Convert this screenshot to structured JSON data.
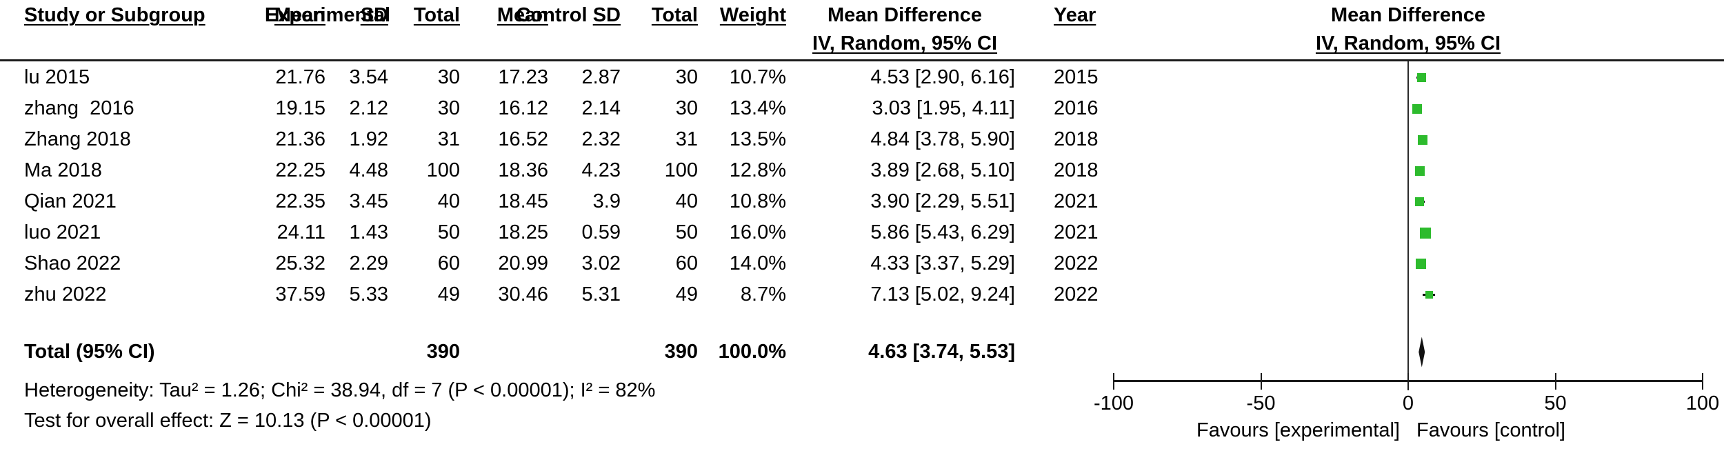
{
  "table": {
    "group_headers": {
      "experimental": "Experimental",
      "control": "Control",
      "mean_difference": "Mean Difference"
    },
    "column_headers": {
      "study": "Study or Subgroup",
      "mean": "Mean",
      "sd": "SD",
      "total": "Total",
      "weight": "Weight",
      "iv_random": "IV, Random, 95% CI",
      "year": "Year"
    }
  },
  "plot": {
    "header_line1": "Mean Difference",
    "header_line2": "IV, Random, 95% CI",
    "favours_left": "Favours [experimental]",
    "favours_right": "Favours [control]"
  },
  "footer": {
    "heterogeneity": "Heterogeneity: Tau² = 1.26; Chi² = 38.94, df = 7 (P < 0.00001); I² = 82%",
    "overall_effect": "Test for overall effect: Z = 10.13 (P < 0.00001)"
  },
  "chart_data": {
    "type": "forest",
    "effect_measure": "Mean Difference, IV, Random, 95% CI",
    "marker_color": "#2dbb2d",
    "axis": {
      "min": -100,
      "max": 100,
      "ticks": [
        -100,
        -50,
        0,
        50,
        100
      ]
    },
    "rows": [
      {
        "study": "lu 2015",
        "mean_e": "21.76",
        "sd_e": "3.54",
        "total_e": "30",
        "mean_c": "17.23",
        "sd_c": "2.87",
        "total_c": "30",
        "weight": "10.7%",
        "weight_pct": 10.7,
        "md": 4.53,
        "ci_low": 2.9,
        "ci_high": 6.16,
        "ci_label": "4.53 [2.90, 6.16]",
        "year": "2015"
      },
      {
        "study": "zhang  2016",
        "mean_e": "19.15",
        "sd_e": "2.12",
        "total_e": "30",
        "mean_c": "16.12",
        "sd_c": "2.14",
        "total_c": "30",
        "weight": "13.4%",
        "weight_pct": 13.4,
        "md": 3.03,
        "ci_low": 1.95,
        "ci_high": 4.11,
        "ci_label": "3.03 [1.95, 4.11]",
        "year": "2016"
      },
      {
        "study": "Zhang 2018",
        "mean_e": "21.36",
        "sd_e": "1.92",
        "total_e": "31",
        "mean_c": "16.52",
        "sd_c": "2.32",
        "total_c": "31",
        "weight": "13.5%",
        "weight_pct": 13.5,
        "md": 4.84,
        "ci_low": 3.78,
        "ci_high": 5.9,
        "ci_label": "4.84 [3.78, 5.90]",
        "year": "2018"
      },
      {
        "study": "Ma 2018",
        "mean_e": "22.25",
        "sd_e": "4.48",
        "total_e": "100",
        "mean_c": "18.36",
        "sd_c": "4.23",
        "total_c": "100",
        "weight": "12.8%",
        "weight_pct": 12.8,
        "md": 3.89,
        "ci_low": 2.68,
        "ci_high": 5.1,
        "ci_label": "3.89 [2.68, 5.10]",
        "year": "2018"
      },
      {
        "study": "Qian 2021",
        "mean_e": "22.35",
        "sd_e": "3.45",
        "total_e": "40",
        "mean_c": "18.45",
        "sd_c": "3.9",
        "total_c": "40",
        "weight": "10.8%",
        "weight_pct": 10.8,
        "md": 3.9,
        "ci_low": 2.29,
        "ci_high": 5.51,
        "ci_label": "3.90 [2.29, 5.51]",
        "year": "2021"
      },
      {
        "study": "luo 2021",
        "mean_e": "24.11",
        "sd_e": "1.43",
        "total_e": "50",
        "mean_c": "18.25",
        "sd_c": "0.59",
        "total_c": "50",
        "weight": "16.0%",
        "weight_pct": 16.0,
        "md": 5.86,
        "ci_low": 5.43,
        "ci_high": 6.29,
        "ci_label": "5.86 [5.43, 6.29]",
        "year": "2021"
      },
      {
        "study": "Shao 2022",
        "mean_e": "25.32",
        "sd_e": "2.29",
        "total_e": "60",
        "mean_c": "20.99",
        "sd_c": "3.02",
        "total_c": "60",
        "weight": "14.0%",
        "weight_pct": 14.0,
        "md": 4.33,
        "ci_low": 3.37,
        "ci_high": 5.29,
        "ci_label": "4.33 [3.37, 5.29]",
        "year": "2022"
      },
      {
        "study": "zhu 2022",
        "mean_e": "37.59",
        "sd_e": "5.33",
        "total_e": "49",
        "mean_c": "30.46",
        "sd_c": "5.31",
        "total_c": "49",
        "weight": "8.7%",
        "weight_pct": 8.7,
        "md": 7.13,
        "ci_low": 5.02,
        "ci_high": 9.24,
        "ci_label": "7.13 [5.02, 9.24]",
        "year": "2022"
      }
    ],
    "total": {
      "label": "Total (95% CI)",
      "total_e": "390",
      "total_c": "390",
      "weight": "100.0%",
      "md": 4.63,
      "ci_low": 3.74,
      "ci_high": 5.53,
      "ci_label": "4.63 [3.74, 5.53]"
    }
  }
}
